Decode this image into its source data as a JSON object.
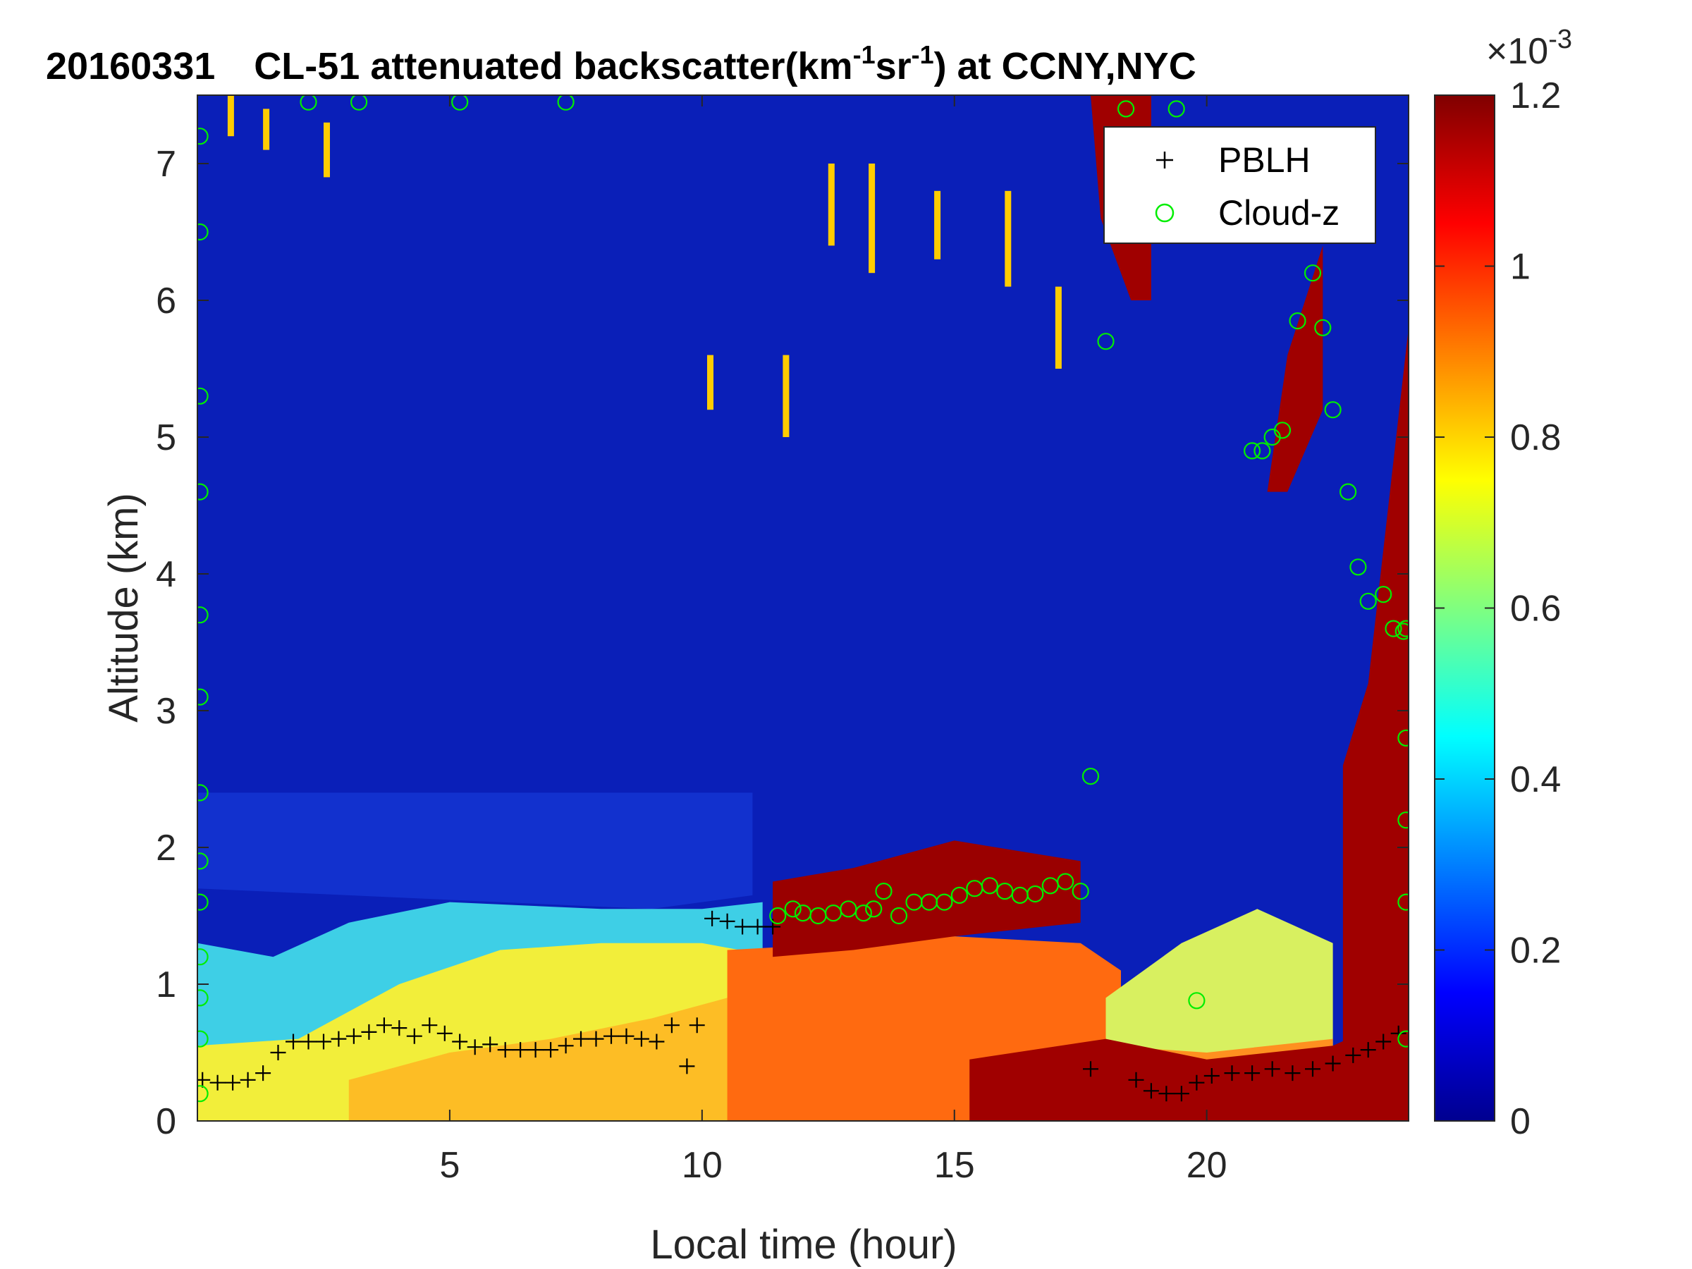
{
  "chart_data": {
    "type": "heatmap",
    "title": {
      "date": "20160331",
      "text_before": "CL-51 attenuated backscatter(km",
      "sup1": "-1",
      "text_mid": "sr",
      "sup2": "-1",
      "text_after": ") at CCNY,NYC"
    },
    "xlabel": "Local time (hour)",
    "ylabel": "Altitude (km)",
    "xlim": [
      0,
      24
    ],
    "ylim": [
      0,
      7.5
    ],
    "xticks": [
      5,
      10,
      15,
      20
    ],
    "yticks": [
      0,
      1,
      2,
      3,
      4,
      5,
      6,
      7
    ],
    "colorbar": {
      "colormap": "jet",
      "range": [
        0,
        1.2
      ],
      "ticks": [
        "0",
        "0.2",
        "0.4",
        "0.6",
        "0.8",
        "1",
        "1.2"
      ],
      "exponent_label": "×10",
      "exponent_power": "-3"
    },
    "legend": {
      "position": "top-right",
      "entries": [
        {
          "label": "PBLH",
          "marker": "+",
          "color": "#000000"
        },
        {
          "label": "Cloud-z",
          "marker": "o",
          "color": "#00ee00"
        }
      ]
    },
    "series": [
      {
        "name": "PBLH",
        "x": [
          0.1,
          0.4,
          0.7,
          1.0,
          1.3,
          1.6,
          1.9,
          2.2,
          2.5,
          2.8,
          3.1,
          3.4,
          3.7,
          4.0,
          4.3,
          4.6,
          4.9,
          5.2,
          5.5,
          5.8,
          6.1,
          6.4,
          6.7,
          7.0,
          7.3,
          7.6,
          7.9,
          8.2,
          8.5,
          8.8,
          9.1,
          9.4,
          9.7,
          9.9,
          10.2,
          10.5,
          10.8,
          11.1,
          11.4,
          17.7,
          18.6,
          18.9,
          19.2,
          19.5,
          19.8,
          20.1,
          20.5,
          20.9,
          21.3,
          21.7,
          22.1,
          22.5,
          22.9,
          23.2,
          23.5,
          23.8
        ],
        "values": [
          0.3,
          0.28,
          0.28,
          0.3,
          0.35,
          0.5,
          0.58,
          0.58,
          0.58,
          0.6,
          0.62,
          0.65,
          0.7,
          0.68,
          0.62,
          0.7,
          0.64,
          0.58,
          0.54,
          0.56,
          0.52,
          0.52,
          0.52,
          0.52,
          0.55,
          0.6,
          0.6,
          0.62,
          0.62,
          0.6,
          0.58,
          0.7,
          0.4,
          0.7,
          1.48,
          1.46,
          1.42,
          1.42,
          1.42,
          0.38,
          0.3,
          0.22,
          0.2,
          0.2,
          0.28,
          0.33,
          0.35,
          0.35,
          0.38,
          0.35,
          0.38,
          0.42,
          0.48,
          0.52,
          0.58,
          0.64
        ]
      },
      {
        "name": "Cloud-z",
        "x": [
          0.05,
          0.05,
          0.05,
          0.05,
          0.05,
          0.05,
          0.05,
          0.05,
          0.05,
          0.05,
          0.05,
          0.05,
          0.05,
          2.2,
          3.2,
          5.2,
          7.3,
          11.5,
          11.8,
          12.0,
          12.3,
          12.6,
          12.9,
          13.2,
          13.4,
          13.6,
          13.9,
          14.2,
          14.5,
          14.8,
          15.1,
          15.4,
          15.7,
          16.0,
          16.3,
          16.6,
          16.9,
          17.2,
          17.5,
          17.7,
          18.0,
          18.4,
          19.4,
          19.8,
          20.9,
          21.1,
          21.3,
          21.5,
          21.8,
          22.1,
          22.3,
          22.5,
          22.8,
          23.0,
          23.2,
          23.5,
          23.7,
          23.9,
          23.95,
          23.95,
          23.95,
          23.95,
          23.95
        ],
        "values": [
          7.2,
          6.5,
          5.3,
          4.6,
          3.7,
          3.1,
          2.4,
          1.9,
          1.6,
          1.2,
          0.9,
          0.6,
          0.2,
          7.45,
          7.45,
          7.45,
          7.45,
          1.5,
          1.55,
          1.52,
          1.5,
          1.52,
          1.55,
          1.52,
          1.55,
          1.68,
          1.5,
          1.6,
          1.6,
          1.6,
          1.65,
          1.7,
          1.72,
          1.68,
          1.65,
          1.66,
          1.72,
          1.75,
          1.68,
          2.52,
          5.7,
          7.4,
          7.4,
          0.88,
          4.9,
          4.9,
          5.0,
          5.05,
          5.85,
          6.2,
          5.8,
          5.2,
          4.6,
          4.05,
          3.8,
          3.85,
          3.6,
          3.58,
          3.6,
          2.8,
          2.2,
          1.6,
          0.6
        ]
      }
    ]
  }
}
